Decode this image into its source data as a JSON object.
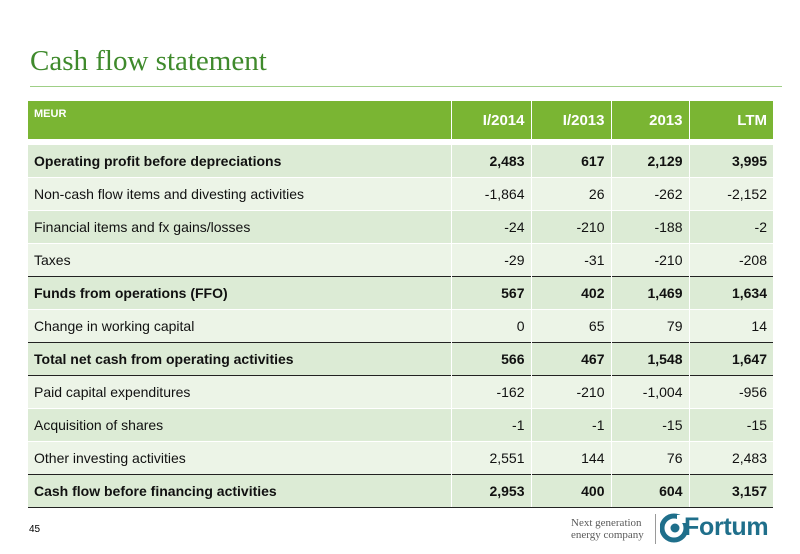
{
  "title": "Cash flow statement",
  "table": {
    "headers": [
      "MEUR",
      "I/2014",
      "I/2013",
      "2013",
      "LTM"
    ],
    "rows": [
      {
        "label": "Operating profit before depreciations",
        "values": [
          "2,483",
          "617",
          "2,129",
          "3,995"
        ],
        "bold": true
      },
      {
        "label": "Non-cash flow items and divesting activities",
        "values": [
          "-1,864",
          "26",
          "-262",
          "-2,152"
        ],
        "bold": false
      },
      {
        "label": "Financial items and fx gains/losses",
        "values": [
          "-24",
          "-210",
          "-188",
          "-2"
        ],
        "bold": false
      },
      {
        "label": "Taxes",
        "values": [
          "-29",
          "-31",
          "-210",
          "-208"
        ],
        "bold": false
      },
      {
        "label": "Funds from operations (FFO)",
        "values": [
          "567",
          "402",
          "1,469",
          "1,634"
        ],
        "bold": true
      },
      {
        "label": "Change in working capital",
        "values": [
          "0",
          "65",
          "79",
          "14"
        ],
        "bold": false
      },
      {
        "label": "Total net cash from operating activities",
        "values": [
          "566",
          "467",
          "1,548",
          "1,647"
        ],
        "bold": true
      },
      {
        "label": "Paid capital expenditures",
        "values": [
          "-162",
          "-210",
          "-1,004",
          "-956"
        ],
        "bold": false
      },
      {
        "label": "Acquisition of shares",
        "values": [
          "-1",
          "-1",
          "-15",
          "-15"
        ],
        "bold": false
      },
      {
        "label": "Other investing activities",
        "values": [
          "2,551",
          "144",
          "76",
          "2,483"
        ],
        "bold": false
      },
      {
        "label": "Cash flow before financing activities",
        "values": [
          "2,953",
          "400",
          "604",
          "3,157"
        ],
        "bold": true
      }
    ]
  },
  "footer": {
    "page_number": "45",
    "tagline_line1": "Next generation",
    "tagline_line2": "energy company",
    "logo_text": "Fortum",
    "logo_icon": "fortum-logo-icon"
  },
  "colors": {
    "title": "#3f8a2c",
    "header_bg": "#7ab533",
    "row_odd": "#dcebd5",
    "row_even": "#ecf4e7",
    "logo": "#1f6f8b"
  }
}
